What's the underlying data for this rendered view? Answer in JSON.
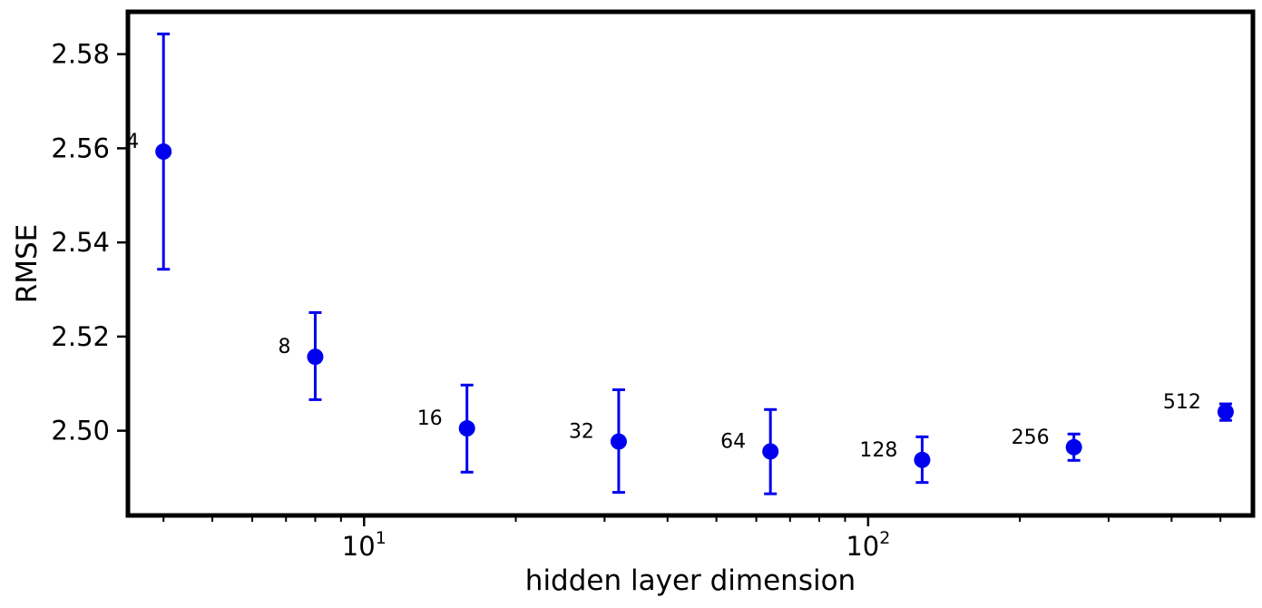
{
  "chart_data": {
    "type": "scatter",
    "title": "",
    "xlabel": "hidden layer dimension",
    "ylabel": "RMSE",
    "xscale": "log",
    "xlim": [
      3.4,
      580
    ],
    "ylim": [
      2.482,
      2.589
    ],
    "x_ticks": [
      {
        "value": 10,
        "base": "10",
        "exp": "1"
      },
      {
        "value": 100,
        "base": "10",
        "exp": "2"
      }
    ],
    "y_ticks": [
      {
        "value": 2.5,
        "label": "2.50"
      },
      {
        "value": 2.52,
        "label": "2.52"
      },
      {
        "value": 2.54,
        "label": "2.54"
      },
      {
        "value": 2.56,
        "label": "2.56"
      },
      {
        "value": 2.58,
        "label": "2.58"
      }
    ],
    "grid": false,
    "color": "#0000ee",
    "points": [
      {
        "x": 4,
        "y": 2.5593,
        "lower": 2.5343,
        "upper": 2.5843,
        "label": "4"
      },
      {
        "x": 8,
        "y": 2.5157,
        "lower": 2.5066,
        "upper": 2.5251,
        "label": "8"
      },
      {
        "x": 16,
        "y": 2.5005,
        "lower": 2.4912,
        "upper": 2.5097,
        "label": "16"
      },
      {
        "x": 32,
        "y": 2.4977,
        "lower": 2.4869,
        "upper": 2.5087,
        "label": "32"
      },
      {
        "x": 64,
        "y": 2.4956,
        "lower": 2.4866,
        "upper": 2.5045,
        "label": "64"
      },
      {
        "x": 128,
        "y": 2.4938,
        "lower": 2.489,
        "upper": 2.4987,
        "label": "128"
      },
      {
        "x": 256,
        "y": 2.4965,
        "lower": 2.4937,
        "upper": 2.4993,
        "label": "256"
      },
      {
        "x": 512,
        "y": 2.504,
        "lower": 2.5022,
        "upper": 2.5057,
        "label": "512"
      }
    ]
  }
}
